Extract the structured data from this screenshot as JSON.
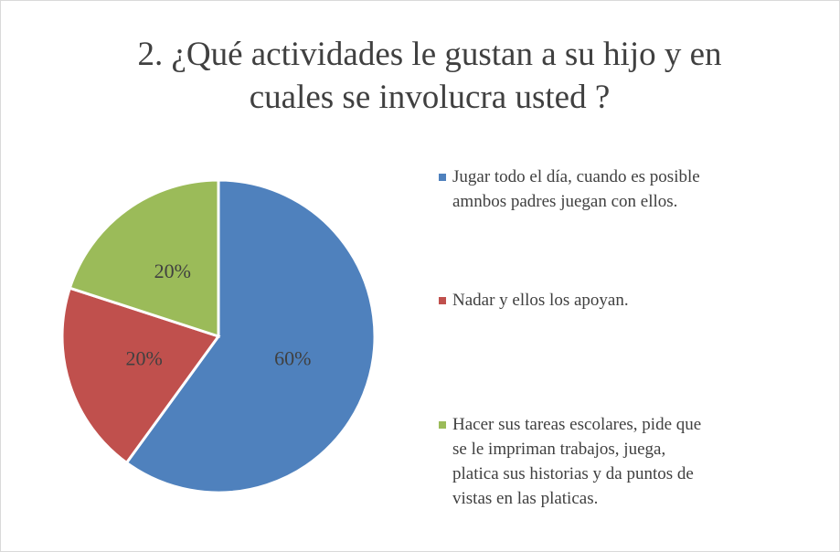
{
  "chart_data": {
    "type": "pie",
    "title": "2. ¿Qué actividades le gustan a su hijo y en cuales se involucra usted ?",
    "categories": [
      "Jugar todo el día, cuando es posible amnbos padres juegan con ellos.",
      "Nadar y ellos los apoyan.",
      "Hacer sus tareas escolares, pide que se le impriman trabajos, juega, platica sus historias y da puntos de vistas en las platicas."
    ],
    "values": [
      60,
      20,
      20
    ],
    "value_labels": [
      "60%",
      "20%",
      "20%"
    ],
    "colors": [
      "#4f81bd",
      "#c0504d",
      "#9bbb59"
    ],
    "legend": "right"
  }
}
